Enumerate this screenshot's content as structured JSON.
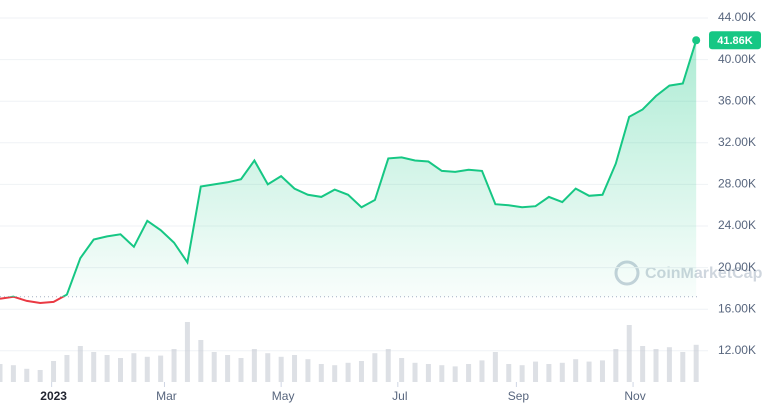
{
  "chart_data": {
    "type": "line",
    "x": [
      0,
      7,
      14,
      21,
      28,
      35,
      42,
      49,
      56,
      63,
      70,
      77,
      84,
      91,
      98,
      105,
      112,
      119,
      126,
      133,
      140,
      147,
      154,
      161,
      168,
      175,
      182,
      189,
      196,
      203,
      210,
      217,
      224,
      231,
      238,
      245,
      252,
      259,
      266,
      273,
      280,
      287,
      294,
      301,
      308,
      315,
      322,
      329,
      336,
      343,
      350,
      357,
      364
    ],
    "series": [
      {
        "name": "Price",
        "color": "#16c784",
        "below_color": "#ea3943",
        "values": [
          17.0,
          17.2,
          16.8,
          16.6,
          16.7,
          17.4,
          20.9,
          22.7,
          23.0,
          23.2,
          22.0,
          24.5,
          23.6,
          22.4,
          20.5,
          27.8,
          28.0,
          28.2,
          28.5,
          30.3,
          28.0,
          28.8,
          27.6,
          27.0,
          26.8,
          27.5,
          27.0,
          25.8,
          26.5,
          30.5,
          30.6,
          30.3,
          30.2,
          29.3,
          29.2,
          29.4,
          29.3,
          26.1,
          26.0,
          25.8,
          25.9,
          26.8,
          26.3,
          27.6,
          26.9,
          27.0,
          30.0,
          34.5,
          35.2,
          36.5,
          37.5,
          37.7,
          41.86
        ],
        "value_labels": {
          "52": "41.86K"
        }
      },
      {
        "name": "Volume",
        "color": "#c7ccd4",
        "axis": "y2",
        "values": [
          30,
          28,
          22,
          20,
          35,
          45,
          60,
          50,
          45,
          40,
          48,
          42,
          44,
          55,
          100,
          70,
          50,
          45,
          40,
          55,
          48,
          42,
          45,
          38,
          30,
          28,
          32,
          35,
          48,
          55,
          40,
          32,
          30,
          28,
          26,
          30,
          36,
          50,
          30,
          28,
          34,
          30,
          32,
          38,
          34,
          36,
          55,
          95,
          60,
          55,
          58,
          50,
          62
        ]
      }
    ],
    "xlim": [
      0,
      366
    ],
    "xticks": [
      {
        "value": 27,
        "label": "2023"
      },
      {
        "value": 86,
        "label": "Mar"
      },
      {
        "value": 147,
        "label": "May"
      },
      {
        "value": 208,
        "label": "Jul"
      },
      {
        "value": 270,
        "label": "Sep"
      },
      {
        "value": 331,
        "label": "Nov"
      }
    ],
    "ylim": [
      10,
      45
    ],
    "yticks": [
      {
        "value": 12,
        "label": "12.00K"
      },
      {
        "value": 16,
        "label": "16.00K"
      },
      {
        "value": 20,
        "label": "20.00K"
      },
      {
        "value": 24,
        "label": "24.00K"
      },
      {
        "value": 28,
        "label": "28.00K"
      },
      {
        "value": 32,
        "label": "32.00K"
      },
      {
        "value": 36,
        "label": "36.00K"
      },
      {
        "value": 40,
        "label": "40.00K"
      },
      {
        "value": 44,
        "label": "44.00K"
      }
    ],
    "y2lim": [
      0,
      100
    ],
    "baseline": 17.2,
    "grid": true,
    "watermark": "CoinMarketCap"
  }
}
